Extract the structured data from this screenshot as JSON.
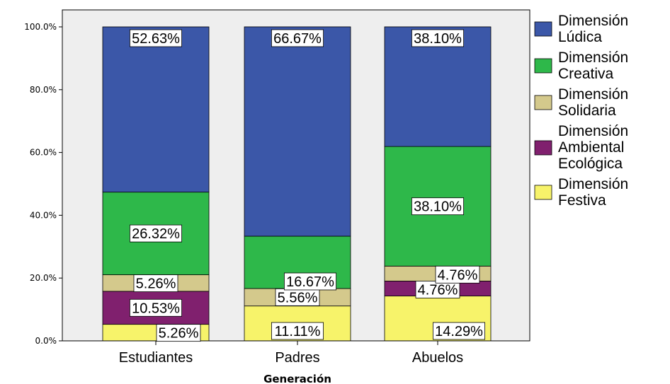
{
  "chart_data": {
    "type": "bar",
    "stacked": true,
    "percent": true,
    "xlabel": "Generación",
    "ylabel": "",
    "ylim": [
      0,
      100
    ],
    "yticks": [
      "0.0%",
      "20.0%",
      "40.0%",
      "60.0%",
      "80.0%",
      "100.0%"
    ],
    "grid": false,
    "legend_position": "right",
    "categories": [
      "Estudiantes",
      "Padres",
      "Abuelos"
    ],
    "series": [
      {
        "name": "Dimensión Festiva",
        "legend_lines": [
          "Dimensión",
          "Festiva"
        ],
        "color": "#f7f36a",
        "values": [
          5.26,
          11.11,
          14.29
        ],
        "labels": [
          "5.26%",
          "11.11%",
          "14.29%"
        ]
      },
      {
        "name": "Dimensión Ambiental Ecológica",
        "legend_lines": [
          "Dimensión",
          "Ambiental",
          "Ecológica"
        ],
        "color": "#80206e",
        "values": [
          10.53,
          0,
          4.76
        ],
        "labels": [
          "10.53%",
          "",
          "4.76%"
        ]
      },
      {
        "name": "Dimensión Solidaria",
        "legend_lines": [
          "Dimensión",
          "Solidaria"
        ],
        "color": "#d4c98c",
        "values": [
          5.26,
          5.56,
          4.76
        ],
        "labels": [
          "5.26%",
          "5.56%",
          "4.76%"
        ]
      },
      {
        "name": "Dimensión Creativa",
        "legend_lines": [
          "Dimensión",
          "Creativa"
        ],
        "color": "#2eb84a",
        "values": [
          26.32,
          16.67,
          38.1
        ],
        "labels": [
          "26.32%",
          "16.67%",
          "38.10%"
        ]
      },
      {
        "name": "Dimensión Lúdica",
        "legend_lines": [
          "Dimensión",
          "Lúdica"
        ],
        "color": "#3b57a8",
        "values": [
          52.63,
          66.67,
          38.1
        ],
        "labels": [
          "52.63%",
          "66.67%",
          "38.10%"
        ]
      }
    ]
  }
}
